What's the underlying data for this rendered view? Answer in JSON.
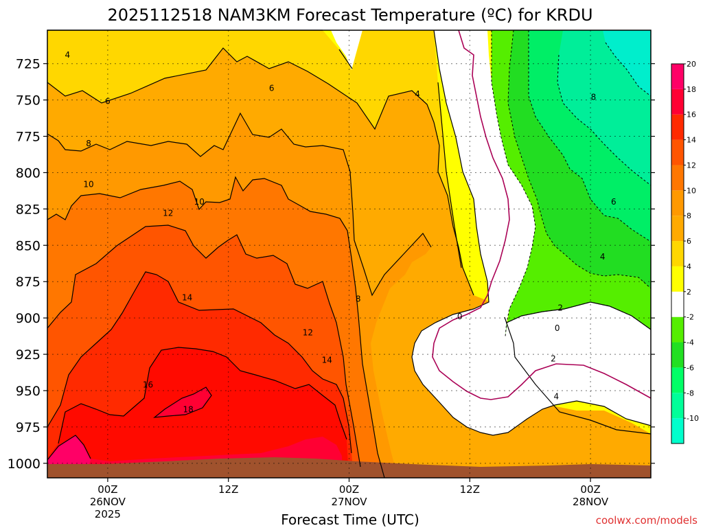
{
  "title": "2025112518 NAM3KM Forecast Temperature (ºC) for KRDU",
  "xaxis_title": "Forecast Time (UTC)",
  "watermark": "coolwx.com/models",
  "colors": {
    "fills": [
      "#00ffcc",
      "#00ff99",
      "#00ff66",
      "#22e022",
      "#55ee00",
      "#ffffff",
      "#ffff00",
      "#ffd700",
      "#ffaa00",
      "#ff9900",
      "#ff7700",
      "#ff5500",
      "#ff2a00",
      "#ff0033",
      "#ff0066"
    ],
    "ground": "#a0522d",
    "zero_line": "#aa0055",
    "watermark": "#e03030"
  },
  "chart_data": {
    "type": "time-height contour",
    "variable": "Temperature (ºC)",
    "y_ticks": [
      725,
      750,
      775,
      800,
      825,
      850,
      875,
      900,
      925,
      950,
      975,
      1000
    ],
    "y_range_hPa": [
      702,
      1010
    ],
    "x_ticks": [
      {
        "hour": 6,
        "line1": "00Z",
        "line2": "26NOV",
        "line3": "2025"
      },
      {
        "hour": 18,
        "line1": "12Z",
        "line2": "",
        "line3": ""
      },
      {
        "hour": 30,
        "line1": "00Z",
        "line2": "27NOV",
        "line3": ""
      },
      {
        "hour": 42,
        "line1": "12Z",
        "line2": "",
        "line3": ""
      },
      {
        "hour": 54,
        "line1": "00Z",
        "line2": "28NOV",
        "line3": ""
      }
    ],
    "x_range_hours": [
      0,
      60
    ],
    "grid": true,
    "colorbar": {
      "min": -12,
      "max": 22,
      "step": 2,
      "labels": [
        "20",
        "18",
        "16",
        "14",
        "12",
        "10",
        "8",
        "6",
        "4",
        "2",
        "-2",
        "-4",
        "-6",
        "-8",
        "-10"
      ]
    },
    "contour_labels": [
      {
        "text": "4",
        "hour": 2.0,
        "p": 719
      },
      {
        "text": "6",
        "hour": 6.0,
        "p": 751
      },
      {
        "text": "6",
        "hour": 22.3,
        "p": 742
      },
      {
        "text": "4",
        "hour": 36.8,
        "p": 746
      },
      {
        "text": "8",
        "hour": 4.1,
        "p": 780
      },
      {
        "text": "10",
        "hour": 4.1,
        "p": 808
      },
      {
        "text": "10",
        "hour": 15.1,
        "p": 820
      },
      {
        "text": "12",
        "hour": 12.0,
        "p": 828
      },
      {
        "text": "14",
        "hour": 13.9,
        "p": 886
      },
      {
        "text": "12",
        "hour": 25.9,
        "p": 910
      },
      {
        "text": "8",
        "hour": 30.9,
        "p": 887
      },
      {
        "text": "14",
        "hour": 27.8,
        "p": 929
      },
      {
        "text": "16",
        "hour": 10.0,
        "p": 946
      },
      {
        "text": "18",
        "hour": 14.0,
        "p": 963
      },
      {
        "text": "0",
        "hour": 41.0,
        "p": 899
      },
      {
        "text": "8",
        "hour": 54.3,
        "p": 748
      },
      {
        "text": "6",
        "hour": 56.3,
        "p": 820
      },
      {
        "text": "4",
        "hour": 55.2,
        "p": 858
      },
      {
        "text": "2",
        "hour": 51.0,
        "p": 893
      },
      {
        "text": "0",
        "hour": 50.7,
        "p": 907
      },
      {
        "text": "2",
        "hour": 50.3,
        "p": 928
      },
      {
        "text": "4",
        "hour": 50.6,
        "p": 954
      }
    ]
  }
}
